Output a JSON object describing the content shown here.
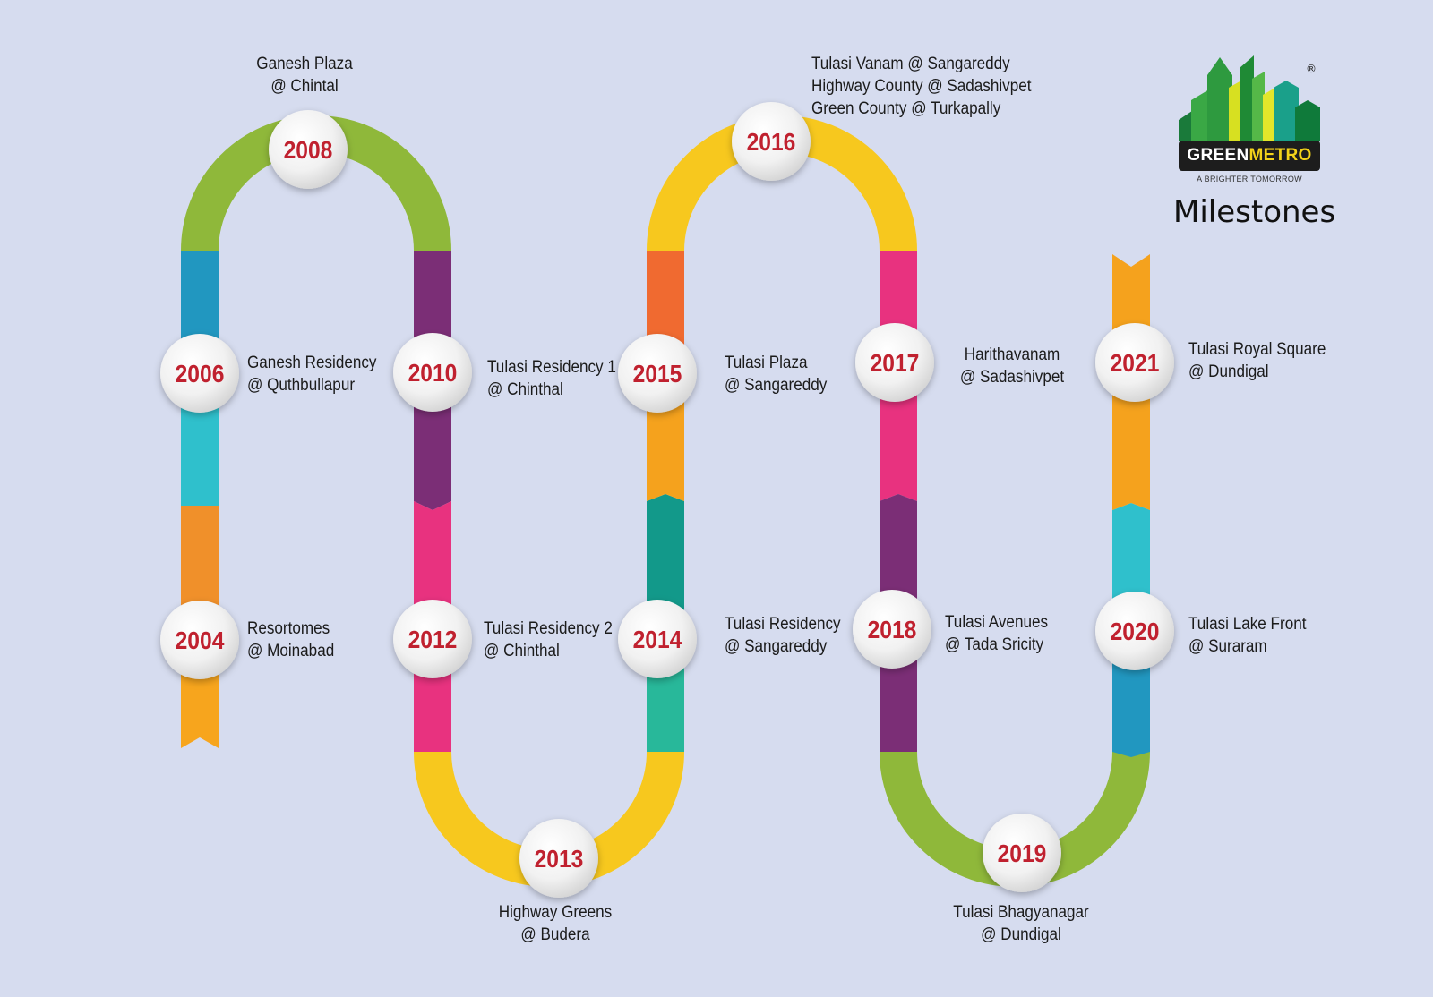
{
  "logo": {
    "brand_part1": "GREEN",
    "brand_part2": "METRO",
    "tagline": "A BRIGHTER TOMORROW",
    "registered": "®"
  },
  "title": "Milestones",
  "colors": {
    "background": "#d6dcef",
    "year_text": "#c0212f",
    "green": "#8fb83a",
    "yellow": "#f7c81e",
    "orange": "#f5a21d",
    "blue": "#2197c0",
    "cyan": "#2fc0cc",
    "purple": "#7b2e76",
    "pink": "#e8327f",
    "teal": "#12998a"
  },
  "milestones": [
    {
      "year": "2004",
      "lines": [
        "Resortomes",
        "@ Moinabad"
      ]
    },
    {
      "year": "2006",
      "lines": [
        "Ganesh Residency",
        "@ Quthbullapur"
      ]
    },
    {
      "year": "2008",
      "lines": [
        "Ganesh Plaza",
        "@ Chintal"
      ]
    },
    {
      "year": "2010",
      "lines": [
        "Tulasi Residency 1",
        "@ Chinthal"
      ]
    },
    {
      "year": "2012",
      "lines": [
        "Tulasi Residency 2",
        "@ Chinthal"
      ]
    },
    {
      "year": "2013",
      "lines": [
        "Highway Greens",
        "@ Budera"
      ]
    },
    {
      "year": "2014",
      "lines": [
        "Tulasi Residency",
        "@ Sangareddy"
      ]
    },
    {
      "year": "2015",
      "lines": [
        "Tulasi Plaza",
        "@ Sangareddy"
      ]
    },
    {
      "year": "2016",
      "lines": [
        "Tulasi Vanam @ Sangareddy",
        "Highway County @ Sadashivpet",
        "Green County @ Turkapally"
      ]
    },
    {
      "year": "2017",
      "lines": [
        "Harithavanam",
        "@ Sadashivpet"
      ]
    },
    {
      "year": "2018",
      "lines": [
        "Tulasi Avenues",
        "@ Tada Sricity"
      ]
    },
    {
      "year": "2019",
      "lines": [
        "Tulasi Bhagyanagar",
        "@ Dundigal"
      ]
    },
    {
      "year": "2020",
      "lines": [
        "Tulasi Lake Front",
        "@ Suraram"
      ]
    },
    {
      "year": "2021",
      "lines": [
        "Tulasi Royal Square",
        "@ Dundigal"
      ]
    }
  ]
}
